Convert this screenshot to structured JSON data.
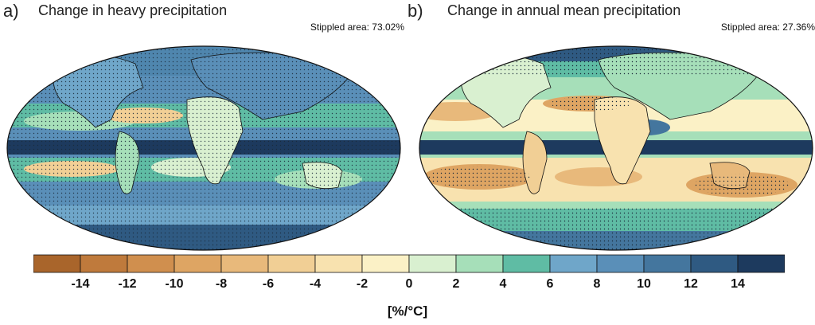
{
  "panels": [
    {
      "letter": "a)",
      "title": "Change in heavy precipitation",
      "stippled_note": "Stippled area: 73.02%"
    },
    {
      "letter": "b)",
      "title": "Change in annual mean precipitation",
      "stippled_note": "Stippled area: 27.36%"
    }
  ],
  "colorbar": {
    "unit": "[%/°C]",
    "tick_labels": [
      "-14",
      "-12",
      "-10",
      "-8",
      "-6",
      "-4",
      "-2",
      "0",
      "2",
      "4",
      "6",
      "8",
      "10",
      "12",
      "14"
    ],
    "colors": [
      "#a9652b",
      "#bf7a3c",
      "#d08f4e",
      "#dea563",
      "#e8b97b",
      "#f1cf95",
      "#f8e2af",
      "#fbf1c6",
      "#d9f0d0",
      "#a6dfb9",
      "#5fbca4",
      "#6fa6c9",
      "#5a8fb8",
      "#44769e",
      "#2f5a82",
      "#1d3a5e"
    ]
  }
}
